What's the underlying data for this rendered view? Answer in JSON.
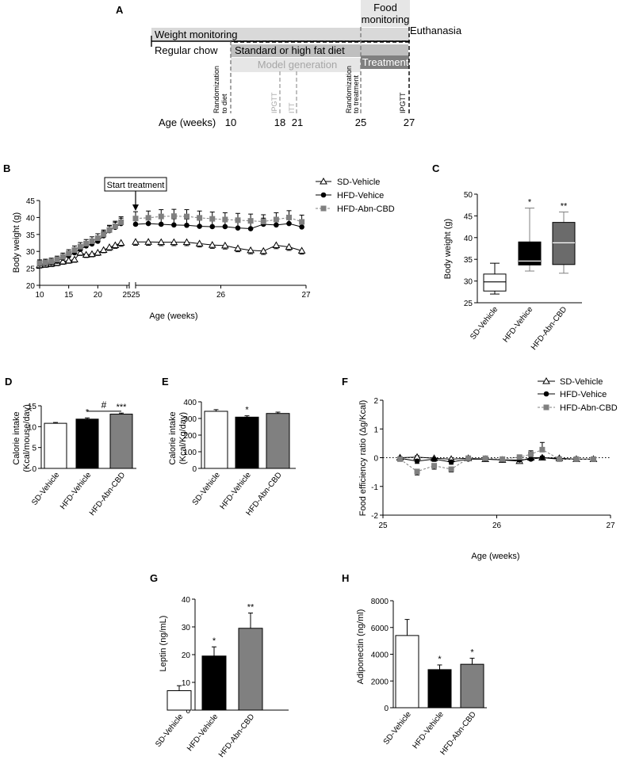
{
  "panel_letters": {
    "A": "A",
    "B": "B",
    "C": "C",
    "D": "D",
    "E": "E",
    "F": "F",
    "G": "G",
    "H": "H"
  },
  "colors": {
    "sd": "#ffffff",
    "hfd": "#000000",
    "abn": "#808080",
    "weight_bar": "#d9d9d9",
    "model_bar": "#e6e6e6",
    "diet_bar": "#bfbfbf",
    "treatment_bar": "#808080",
    "food_bar": "#e6e6e6",
    "dashed_gray": "#a6a6a6"
  },
  "timeline": {
    "food_monitoring_line1": "Food",
    "food_monitoring_line2": "monitoring",
    "weight_monitoring": "Weight monitoring",
    "euthanasia": "Euthanasia",
    "regular_chow": "Regular chow",
    "diet": "Standard or high fat diet",
    "model_generation": "Model generation",
    "treatment": "Treatment",
    "randomization_diet_line1": "Randomization",
    "randomization_diet_line2": "to diet",
    "ipgtt_18": "IPGTT",
    "itt_21": "ITT",
    "randomization_treatment_line1": "Randomization",
    "randomization_treatment_line2": "to treatment",
    "ipgtt_27": "IPGTT",
    "age_label": "Age (weeks)",
    "weeks": [
      "10",
      "18",
      "21",
      "25",
      "27"
    ]
  },
  "chart_data": [
    {
      "id": "B",
      "type": "line",
      "title": "",
      "annotation": "Start treatment",
      "xlabel": "Age (weeks)",
      "ylabel": "Body weight (g)",
      "ylim": [
        20,
        45
      ],
      "yticks": [
        "20",
        "25",
        "30",
        "35",
        "40",
        "45"
      ],
      "xticks_left": [
        "10",
        "15",
        "20",
        "25"
      ],
      "xticks_right": [
        "25",
        "26",
        "27"
      ],
      "x_left": [
        10,
        11,
        12,
        13,
        14,
        15,
        16,
        17,
        18,
        19,
        20,
        21,
        22,
        23,
        24
      ],
      "x_right": [
        25.0,
        25.15,
        25.3,
        25.45,
        25.6,
        25.75,
        25.9,
        26.05,
        26.2,
        26.35,
        26.5,
        26.65,
        26.8,
        26.95
      ],
      "series": [
        {
          "name": "SD-Vehicle",
          "marker": "open-triangle",
          "left": [
            25.9,
            26.1,
            26.3,
            26.6,
            27.0,
            27.3,
            27.6,
            29.6,
            29.0,
            29.2,
            29.6,
            30.4,
            31.2,
            31.8,
            32.5
          ],
          "left_err": [
            0.8,
            0.8,
            0.8,
            0.8,
            0.8,
            0.8,
            0.8,
            0.8,
            0.8,
            0.8,
            0.8,
            0.8,
            0.9,
            0.9,
            1.0
          ],
          "right": [
            32.8,
            32.8,
            32.7,
            32.7,
            32.7,
            32.3,
            31.9,
            31.7,
            30.9,
            30.3,
            30.1,
            31.8,
            31.3,
            30.2
          ],
          "right_err": [
            1.0,
            1.0,
            1.0,
            1.0,
            1.0,
            1.0,
            1.0,
            1.0,
            1.0,
            1.0,
            1.0,
            1.0,
            1.0,
            1.0
          ]
        },
        {
          "name": "HFD-Vehice",
          "marker": "filled-circle",
          "left": [
            26.2,
            26.4,
            26.6,
            27.1,
            28.0,
            28.7,
            29.6,
            30.6,
            31.6,
            32.2,
            33.0,
            34.6,
            36.1,
            37.1,
            38.2
          ],
          "left_err": [
            1.0,
            1.0,
            1.0,
            1.0,
            1.1,
            1.1,
            1.2,
            1.2,
            1.2,
            1.3,
            1.3,
            1.3,
            1.4,
            1.5,
            1.6
          ],
          "right": [
            38.0,
            38.2,
            38.0,
            37.8,
            37.7,
            37.4,
            37.3,
            37.3,
            36.9,
            36.7,
            38.0,
            37.8,
            38.2,
            37.2
          ],
          "right_err": [
            1.8,
            1.8,
            1.8,
            1.8,
            1.8,
            1.8,
            1.8,
            1.8,
            1.8,
            1.8,
            1.8,
            1.8,
            1.8,
            1.8
          ]
        },
        {
          "name": "HFD-Abn-CBD",
          "marker": "gray-square",
          "left": [
            26.5,
            26.7,
            27.0,
            27.6,
            28.4,
            29.4,
            30.4,
            31.4,
            32.3,
            33.0,
            33.9,
            35.0,
            36.3,
            37.4,
            38.6
          ],
          "left_err": [
            1.0,
            1.0,
            1.0,
            1.0,
            1.1,
            1.1,
            1.2,
            1.2,
            1.2,
            1.3,
            1.3,
            1.3,
            1.4,
            1.5,
            1.6
          ],
          "right": [
            39.7,
            39.9,
            40.3,
            40.4,
            40.3,
            39.9,
            39.6,
            39.4,
            39.2,
            39.0,
            38.8,
            39.4,
            40.0,
            38.7
          ],
          "right_err": [
            2.0,
            2.0,
            2.0,
            2.0,
            2.0,
            2.0,
            2.0,
            2.0,
            2.0,
            2.0,
            2.0,
            2.0,
            2.0,
            2.0
          ]
        }
      ]
    },
    {
      "id": "C",
      "type": "box",
      "ylabel": "Body weight (g)",
      "ylim": [
        25,
        50
      ],
      "yticks": [
        "25",
        "30",
        "35",
        "40",
        "45",
        "50"
      ],
      "categories": [
        "SD-Vehicle",
        "HFD-Vehice",
        "HFD-Abn-CBD"
      ],
      "boxes": [
        {
          "min": 27.0,
          "q1": 27.7,
          "median": 29.8,
          "q3": 31.6,
          "max": 34.1,
          "fill": "#ffffff",
          "sig": ""
        },
        {
          "min": 32.3,
          "q1": 33.7,
          "median": 34.6,
          "q3": 39.0,
          "max": 46.8,
          "fill": "#000000",
          "sig": "*"
        },
        {
          "min": 31.8,
          "q1": 33.8,
          "median": 38.8,
          "q3": 43.5,
          "max": 45.9,
          "fill": "#6b6b6b",
          "sig": "**"
        }
      ]
    },
    {
      "id": "D",
      "type": "bar",
      "ylabel_line1": "Calorie intake",
      "ylabel_line2": "(Kcal/mouse/day)",
      "ylim": [
        0,
        15
      ],
      "yticks": [
        "0",
        "5",
        "10",
        "15"
      ],
      "categories": [
        "SD-Vehicle",
        "HFD-Vehicle",
        "HFD-Abn-CBD"
      ],
      "values": [
        10.8,
        11.8,
        13.0
      ],
      "errors": [
        0.2,
        0.3,
        0.25
      ],
      "sig": [
        "",
        "*",
        "***"
      ],
      "bracket_label": "#"
    },
    {
      "id": "E",
      "type": "bar",
      "ylabel_line1": "Calorie intake",
      "ylabel_line2": "(Kcal/Kg/day)",
      "ylim": [
        0,
        400
      ],
      "yticks": [
        "0",
        "100",
        "200",
        "300",
        "400"
      ],
      "categories": [
        "SD-Vehicle",
        "HFD-Vehicle",
        "HFD-Abn-CBD"
      ],
      "values": [
        343,
        308,
        330
      ],
      "errors": [
        10,
        8,
        8
      ],
      "sig": [
        "",
        "*",
        ""
      ]
    },
    {
      "id": "F",
      "type": "line",
      "xlabel": "Age (weeks)",
      "ylabel": "Food efficiency ratio (Δg/Kcal)",
      "ylim": [
        -2,
        2
      ],
      "yticks": [
        "-2",
        "-1",
        "0",
        "1",
        "2"
      ],
      "xlim": [
        25,
        27
      ],
      "xticks": [
        "25",
        "26",
        "27"
      ],
      "x": [
        25.15,
        25.3,
        25.45,
        25.6,
        25.75,
        25.9,
        26.05,
        26.2,
        26.3,
        26.4,
        26.55,
        26.7,
        26.85
      ],
      "series": [
        {
          "name": "SD-Vehicle",
          "marker": "open-triangle",
          "values": [
            0.0,
            0.02,
            -0.02,
            -0.05,
            -0.02,
            -0.05,
            -0.08,
            -0.12,
            0.0,
            0.0,
            -0.02,
            -0.05,
            -0.05
          ],
          "errors": [
            0.03,
            0.05,
            0.05,
            0.05,
            0.05,
            0.05,
            0.05,
            0.05,
            0.05,
            0.05,
            0.05,
            0.05,
            0.05
          ]
        },
        {
          "name": "HFD-Vehice",
          "marker": "filled-circle",
          "values": [
            -0.02,
            -0.12,
            -0.05,
            -0.15,
            -0.05,
            -0.05,
            -0.08,
            -0.08,
            -0.05,
            0.0,
            -0.05,
            -0.05,
            -0.05
          ],
          "errors": [
            0.05,
            0.08,
            0.08,
            0.08,
            0.05,
            0.05,
            0.05,
            0.05,
            0.05,
            0.05,
            0.05,
            0.05,
            0.05
          ]
        },
        {
          "name": "HFD-Abn-CBD",
          "marker": "gray-square",
          "values": [
            -0.05,
            -0.48,
            -0.28,
            -0.4,
            -0.02,
            -0.02,
            -0.05,
            0.02,
            0.12,
            0.28,
            -0.05,
            -0.05,
            -0.05
          ],
          "errors": [
            0.05,
            0.12,
            0.12,
            0.1,
            0.08,
            0.05,
            0.05,
            0.05,
            0.12,
            0.25,
            0.05,
            0.05,
            0.05
          ]
        }
      ]
    },
    {
      "id": "G",
      "type": "bar",
      "ylabel": "Leptin (ng/mL)",
      "ylim": [
        0,
        40
      ],
      "yticks": [
        "0",
        "10",
        "20",
        "30",
        "40"
      ],
      "categories": [
        "SD-Vehicle",
        "HFD-Vehicle",
        "HFD-Abn-CBD"
      ],
      "values": [
        7.0,
        19.5,
        29.5
      ],
      "errors": [
        1.8,
        3.3,
        5.5
      ],
      "sig": [
        "",
        "*",
        "**"
      ]
    },
    {
      "id": "H",
      "type": "bar",
      "ylabel": "Adiponectin (ng/ml)",
      "ylim": [
        0,
        8000
      ],
      "yticks": [
        "0",
        "2000",
        "4000",
        "6000",
        "8000"
      ],
      "categories": [
        "SD-Vehicle",
        "HFD-Vehicle",
        "HFD-Abn-CBD"
      ],
      "values": [
        5400,
        2850,
        3250
      ],
      "errors": [
        1200,
        350,
        450
      ],
      "sig": [
        "",
        "*",
        "*"
      ]
    }
  ]
}
